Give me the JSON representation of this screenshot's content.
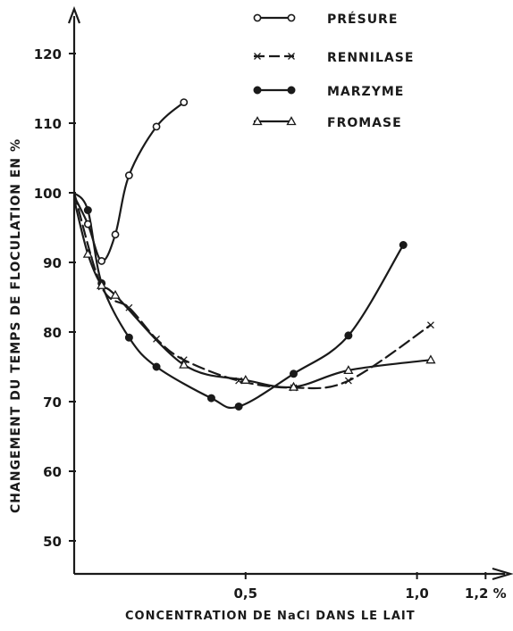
{
  "chart_data": {
    "type": "line",
    "xlabel": "CONCENTRATION DE NaCl DANS LE LAIT",
    "ylabel": "CHANGEMENT DU TEMPS DE FLOCULATION EN %",
    "xlim": [
      0,
      1.2
    ],
    "ylim": [
      40,
      127
    ],
    "x_ticks": [
      {
        "value": 0.5,
        "label": "0,5"
      },
      {
        "value": 1.0,
        "label": "1,0"
      },
      {
        "value": 1.2,
        "label": "1,2 %"
      }
    ],
    "y_ticks": [
      {
        "value": 50,
        "label": "50"
      },
      {
        "value": 60,
        "label": "60"
      },
      {
        "value": 70,
        "label": "70"
      },
      {
        "value": 80,
        "label": "80"
      },
      {
        "value": 90,
        "label": "90"
      },
      {
        "value": 100,
        "label": "100"
      },
      {
        "value": 110,
        "label": "110"
      },
      {
        "value": 120,
        "label": "120"
      }
    ],
    "grid": false,
    "legend_position": "top-right",
    "series": [
      {
        "name": "PRÉSURE",
        "marker": "open-circle",
        "dash": "solid",
        "x": [
          0.0,
          0.04,
          0.08,
          0.12,
          0.16,
          0.24,
          0.32
        ],
        "y": [
          99.5,
          95.5,
          90.2,
          94.0,
          102.5,
          109.5,
          113.0
        ]
      },
      {
        "name": "RENNILASE",
        "marker": "cross",
        "dash": "dashed",
        "x": [
          0.0,
          0.08,
          0.16,
          0.24,
          0.32,
          0.48,
          0.64,
          0.8,
          1.04
        ],
        "y": [
          100.0,
          86.5,
          83.5,
          79.0,
          76.0,
          73.0,
          72.0,
          73.0,
          81.0
        ]
      },
      {
        "name": "MARZYME",
        "marker": "filled-circle",
        "dash": "solid",
        "x": [
          0.0,
          0.04,
          0.08,
          0.16,
          0.24,
          0.4,
          0.48,
          0.64,
          0.8,
          0.96
        ],
        "y": [
          100.0,
          97.5,
          87.0,
          79.2,
          75.0,
          70.5,
          69.3,
          74.0,
          79.5,
          92.5
        ]
      },
      {
        "name": "FROMASE",
        "marker": "open-triangle",
        "dash": "solid",
        "x": [
          0.0,
          0.04,
          0.08,
          0.12,
          0.32,
          0.5,
          0.64,
          0.8,
          1.04
        ],
        "y": [
          99.0,
          91.2,
          86.7,
          85.3,
          75.3,
          73.1,
          72.1,
          74.5,
          76.0
        ]
      }
    ]
  }
}
